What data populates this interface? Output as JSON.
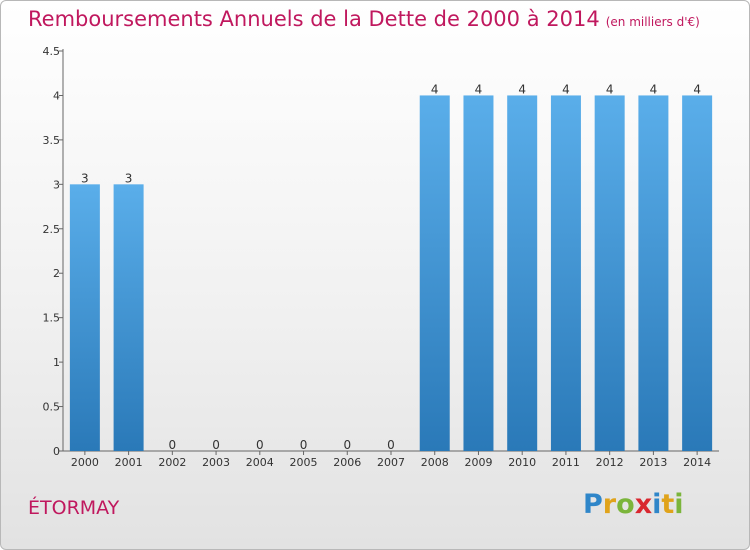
{
  "header": {
    "title": "Remboursements Annuels de la Dette de 2000 à 2014",
    "subtitle": "(en milliers d'€)"
  },
  "footer": {
    "commune": "ÉTORMAY",
    "logo_letters": [
      "P",
      "r",
      "o",
      "x",
      "i",
      "t",
      "i"
    ],
    "logo_colors": [
      "#2f86c9",
      "#e0a31b",
      "#7bb53b",
      "#d9272f",
      "#2f86c9",
      "#e0a31b",
      "#7bb53b"
    ]
  },
  "colors": {
    "bar_top": "#5aaeea",
    "bar_bottom": "#2a79b8",
    "axis": "#666666"
  },
  "chart_data": {
    "type": "bar",
    "title": "Remboursements Annuels de la Dette de 2000 à 2014",
    "xlabel": "",
    "ylabel": "",
    "categories": [
      "2000",
      "2001",
      "2002",
      "2003",
      "2004",
      "2005",
      "2006",
      "2007",
      "2008",
      "2009",
      "2010",
      "2011",
      "2012",
      "2013",
      "2014"
    ],
    "values": [
      3,
      3,
      0,
      0,
      0,
      0,
      0,
      0,
      4,
      4,
      4,
      4,
      4,
      4,
      4
    ],
    "data_labels": [
      "3",
      "3",
      "0",
      "0",
      "0",
      "0",
      "0",
      "0",
      "4",
      "4",
      "4",
      "4",
      "4",
      "4",
      "4"
    ],
    "ylim": [
      0,
      4.5
    ],
    "yticks": [
      0,
      0.5,
      1,
      1.5,
      2,
      2.5,
      3,
      3.5,
      4,
      4.5
    ],
    "ytick_labels": [
      "0",
      "0.5",
      "1",
      "1.5",
      "2",
      "2.5",
      "3",
      "3.5",
      "4",
      "4.5"
    ],
    "grid": false,
    "legend": "none"
  }
}
